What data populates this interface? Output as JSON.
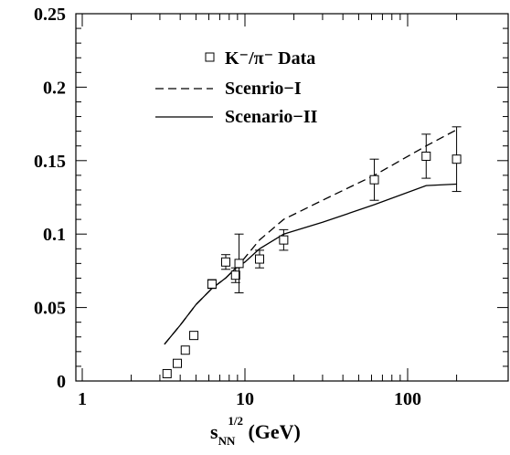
{
  "chart_data": {
    "type": "scatter",
    "xscale": "log",
    "xlim": [
      1,
      230
    ],
    "ylim": [
      0,
      0.25
    ],
    "x_ticks": [
      {
        "value": 1,
        "label": "1"
      },
      {
        "value": 10,
        "label": "10"
      },
      {
        "value": 100,
        "label": "100"
      }
    ],
    "y_ticks": [
      {
        "value": 0,
        "label": "0"
      },
      {
        "value": 0.05,
        "label": "0.05"
      },
      {
        "value": 0.1,
        "label": "0.1"
      },
      {
        "value": 0.15,
        "label": "0.15"
      },
      {
        "value": 0.2,
        "label": "0.2"
      },
      {
        "value": 0.25,
        "label": "0.25"
      }
    ],
    "xlabel": {
      "base": "s",
      "sub": "NN",
      "sup": "1/2",
      "rest": " (GeV)"
    },
    "ylabel": "",
    "grid": false,
    "legend_position": "top-left",
    "legend": [
      {
        "kind": "marker",
        "label": "K⁻/π⁻ Data"
      },
      {
        "kind": "dashed",
        "label": "Scenrio−I"
      },
      {
        "kind": "solid",
        "label": "Scenario−II"
      }
    ],
    "data_points": [
      {
        "x": 3.32,
        "y": 0.005,
        "err": 0
      },
      {
        "x": 3.84,
        "y": 0.012,
        "err": 0
      },
      {
        "x": 4.3,
        "y": 0.021,
        "err": 0
      },
      {
        "x": 4.85,
        "y": 0.031,
        "err": 0
      },
      {
        "x": 6.27,
        "y": 0.066,
        "err": 0.003
      },
      {
        "x": 7.62,
        "y": 0.081,
        "err": 0.005
      },
      {
        "x": 8.76,
        "y": 0.072,
        "err": 0.005
      },
      {
        "x": 9.2,
        "y": 0.08,
        "err": 0.02
      },
      {
        "x": 12.3,
        "y": 0.083,
        "err": 0.006
      },
      {
        "x": 17.3,
        "y": 0.096,
        "err": 0.007
      },
      {
        "x": 62.4,
        "y": 0.137,
        "err": 0.014
      },
      {
        "x": 130,
        "y": 0.153,
        "err": 0.015
      },
      {
        "x": 200,
        "y": 0.151,
        "err": 0.022
      }
    ],
    "series": [
      {
        "name": "Scenrio−I",
        "style": "dashed",
        "x": [
          3.2,
          4.0,
          5.0,
          6.27,
          7.6,
          8.8,
          10.0,
          12.3,
          17.3,
          30,
          62.4,
          130,
          200
        ],
        "y": [
          0.025,
          0.038,
          0.052,
          0.063,
          0.07,
          0.077,
          0.084,
          0.096,
          0.11,
          0.123,
          0.14,
          0.16,
          0.171
        ]
      },
      {
        "name": "Scenario−II",
        "style": "solid",
        "x": [
          3.2,
          4.0,
          5.0,
          6.27,
          7.6,
          8.8,
          10.0,
          12.3,
          17.3,
          30,
          62.4,
          130,
          200
        ],
        "y": [
          0.025,
          0.038,
          0.052,
          0.063,
          0.07,
          0.077,
          0.081,
          0.09,
          0.1,
          0.108,
          0.12,
          0.133,
          0.134
        ]
      }
    ]
  }
}
